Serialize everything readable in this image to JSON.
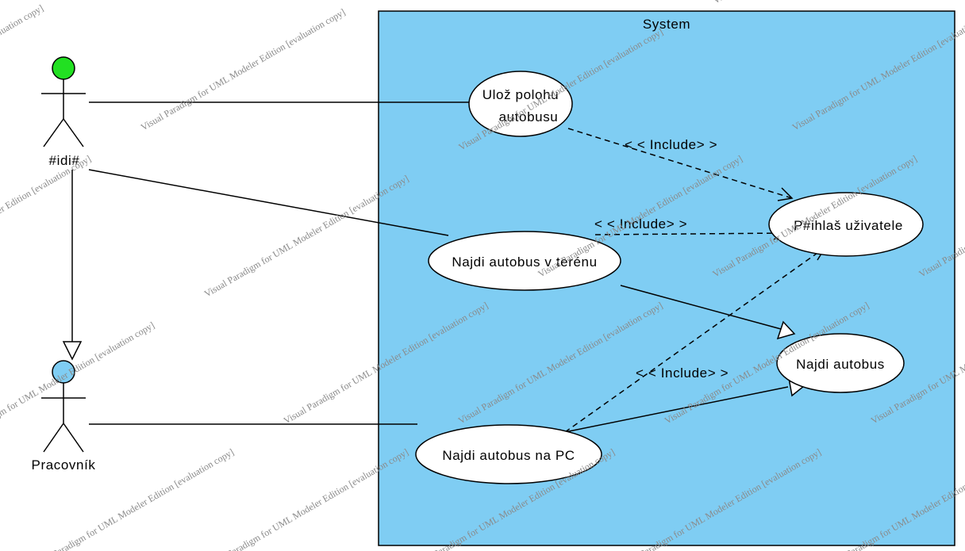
{
  "diagram": {
    "system": {
      "title": "System",
      "fill": "#7fcdf3"
    },
    "actors": [
      {
        "id": "idi",
        "label": "#idi#",
        "head_color": "#22e022"
      },
      {
        "id": "pracovnik",
        "label": "Pracovník",
        "head_color": "#7fcdf3"
      }
    ],
    "use_cases": [
      {
        "id": "uloz",
        "lines": [
          "Ulož polohu",
          "autobusu"
        ]
      },
      {
        "id": "prihlas",
        "lines": [
          "P#ihlaš uživatele"
        ]
      },
      {
        "id": "najdi-teren",
        "lines": [
          "Najdi autobus v terénu"
        ]
      },
      {
        "id": "najdi",
        "lines": [
          "Najdi autobus"
        ]
      },
      {
        "id": "najdi-pc",
        "lines": [
          "Najdi autobus na PC"
        ]
      }
    ],
    "relations": [
      {
        "type": "include",
        "from": "uloz",
        "to": "prihlas",
        "label": "< < Include> >"
      },
      {
        "type": "include",
        "from": "najdi-teren",
        "to": "prihlas",
        "label": "< < Include> >"
      },
      {
        "type": "include",
        "from": "najdi-pc",
        "to": "prihlas",
        "label": "< < Include> >"
      },
      {
        "type": "generalization",
        "from": "najdi-teren",
        "to": "najdi"
      },
      {
        "type": "generalization",
        "from": "najdi-pc",
        "to": "najdi"
      },
      {
        "type": "generalization",
        "from": "idi",
        "to": "pracovnik"
      },
      {
        "type": "association",
        "from": "idi",
        "to": "uloz"
      },
      {
        "type": "association",
        "from": "idi",
        "to": "najdi-teren"
      },
      {
        "type": "association",
        "from": "pracovnik",
        "to": "najdi-pc"
      }
    ],
    "watermark_text": "Visual Paradigm for UML Modeler Edition [evaluation copy]"
  }
}
